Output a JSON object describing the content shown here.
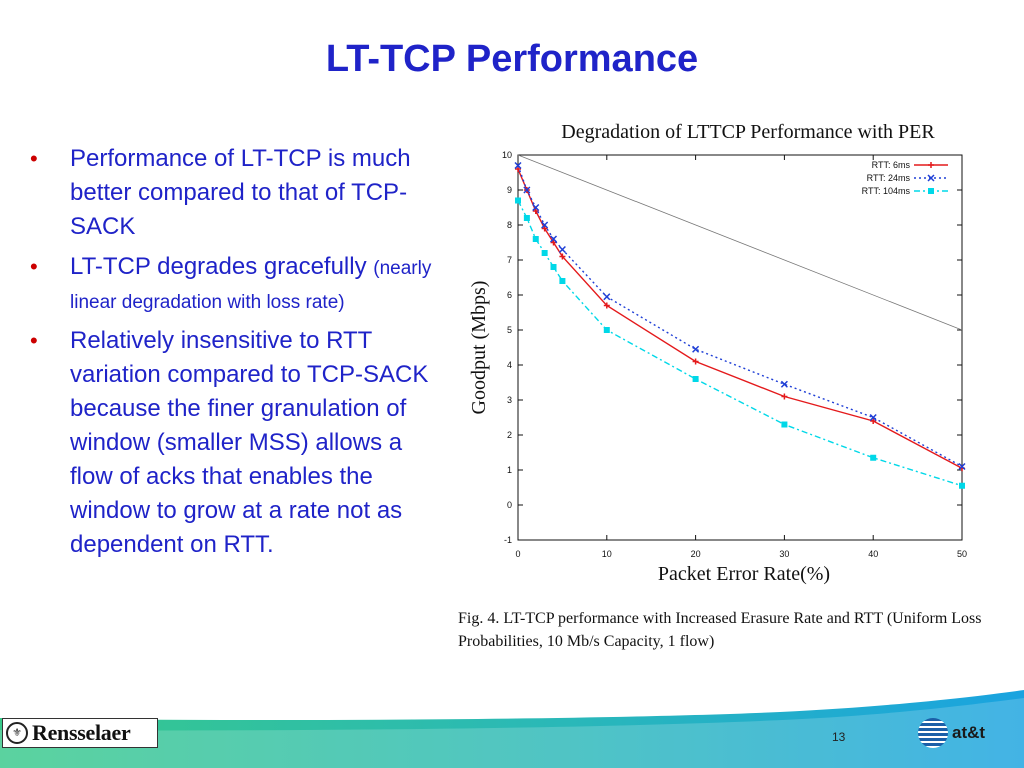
{
  "slide": {
    "title": "LT-TCP Performance",
    "page_number": "13",
    "bullets": [
      {
        "text": "Performance of LT-TCP is much better compared to that of TCP-SACK",
        "sub": ""
      },
      {
        "text": "LT-TCP degrades gracefully",
        "sub": "(nearly linear degradation with loss rate)"
      },
      {
        "text": "Relatively insensitive to RTT variation compared to TCP-SACK because the finer granulation of window (smaller MSS) allows a flow of acks that enables the window to grow at a rate not as dependent on RTT.",
        "sub": ""
      }
    ],
    "bullet_marker": "•",
    "caption": "Fig. 4.    LT-TCP performance with Increased Erasure Rate and RTT (Uniform Loss Probabilities, 10 Mb/s Capacity, 1 flow)",
    "logos": {
      "left": "Rensselaer",
      "right": "at&t"
    },
    "colors": {
      "title": "#1f23c8",
      "bullet_marker": "#cc0000",
      "footer_green": "#37c98a",
      "footer_blue": "#1aa3e0"
    }
  },
  "chart_data": {
    "type": "line",
    "title": "Degradation of LTTCP Performance with PER",
    "xlabel": "Packet Error Rate(%)",
    "ylabel": "Goodput (Mbps)",
    "xlim": [
      0,
      50
    ],
    "ylim": [
      -1,
      10
    ],
    "xticks": [
      0,
      10,
      20,
      30,
      40,
      50
    ],
    "yticks": [
      -1,
      0,
      1,
      2,
      3,
      4,
      5,
      6,
      7,
      8,
      9,
      10
    ],
    "legend_position": "top-right",
    "reference_line": {
      "x": [
        0,
        50
      ],
      "y": [
        10,
        5
      ],
      "color": "#777777"
    },
    "series": [
      {
        "name": "RTT: 6ms",
        "color": "#e41a1c",
        "marker": "plus",
        "dash": "",
        "x": [
          0,
          1,
          2,
          3,
          4,
          5,
          10,
          20,
          30,
          40,
          50
        ],
        "y": [
          9.6,
          9.0,
          8.4,
          7.9,
          7.5,
          7.1,
          5.7,
          4.1,
          3.1,
          2.4,
          1.05
        ]
      },
      {
        "name": "RTT: 24ms",
        "color": "#1f3fd6",
        "marker": "x",
        "dash": "2,3",
        "x": [
          0,
          1,
          2,
          3,
          4,
          5,
          10,
          20,
          30,
          40,
          50
        ],
        "y": [
          9.7,
          9.0,
          8.5,
          8.0,
          7.6,
          7.3,
          5.95,
          4.45,
          3.45,
          2.5,
          1.1
        ]
      },
      {
        "name": "RTT: 104ms",
        "color": "#00d8e8",
        "marker": "square",
        "dash": "6,3,2,3",
        "x": [
          0,
          1,
          2,
          3,
          4,
          5,
          10,
          20,
          30,
          40,
          50
        ],
        "y": [
          8.7,
          8.2,
          7.6,
          7.2,
          6.8,
          6.4,
          5.0,
          3.6,
          2.3,
          1.35,
          0.55
        ]
      }
    ]
  }
}
